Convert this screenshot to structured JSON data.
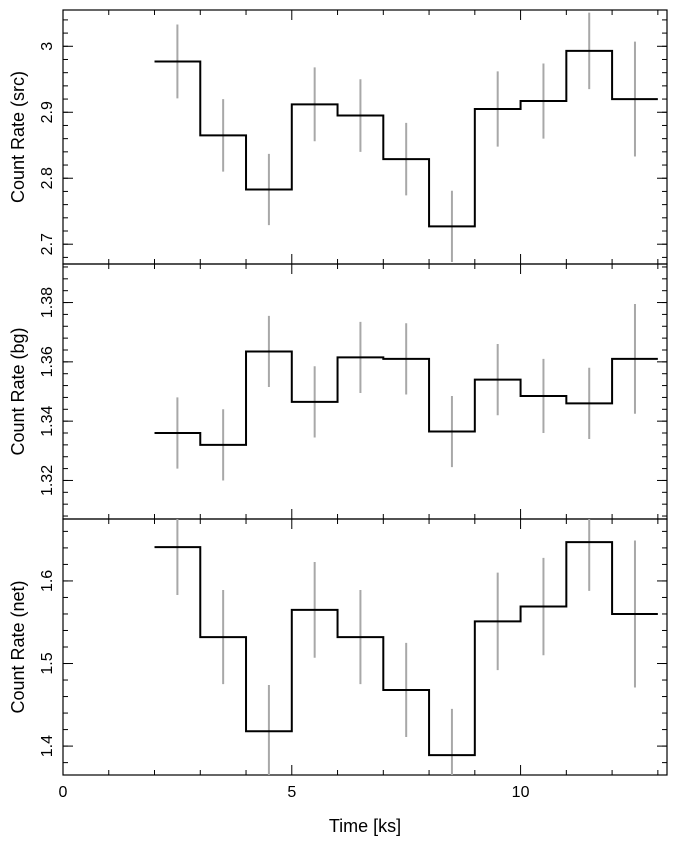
{
  "chart_data": {
    "type": "line",
    "shared_x_axis": {
      "xlabel": "Time [ks]",
      "xlim": [
        0,
        13.2
      ],
      "major_ticks": [
        0,
        5,
        10
      ],
      "tick_labels": [
        "0",
        "5",
        "10"
      ]
    },
    "bin_edges": [
      2,
      3,
      4,
      5,
      6,
      7,
      8,
      9,
      10,
      11,
      12,
      13
    ],
    "bin_centers": [
      2.5,
      3.5,
      4.5,
      5.5,
      6.5,
      7.5,
      8.5,
      9.5,
      10.5,
      11.5,
      12.5
    ],
    "panels": [
      {
        "ylabel": "Count Rate (src)",
        "ylim": [
          2.67,
          3.055
        ],
        "major_ticks": [
          2.7,
          2.8,
          2.9,
          3.0
        ],
        "tick_labels": [
          "2.7",
          "2.8",
          "2.9",
          "3"
        ],
        "minor_step": 0.02,
        "values": [
          2.977,
          2.865,
          2.783,
          2.912,
          2.895,
          2.829,
          2.727,
          2.905,
          2.917,
          2.993,
          2.92
        ],
        "errors": [
          0.056,
          0.055,
          0.054,
          0.056,
          0.055,
          0.055,
          0.054,
          0.057,
          0.057,
          0.058,
          0.087
        ]
      },
      {
        "ylabel": "Count Rate (bg)",
        "ylim": [
          1.307,
          1.393
        ],
        "major_ticks": [
          1.32,
          1.34,
          1.36,
          1.38
        ],
        "tick_labels": [
          "1.32",
          "1.34",
          "1.36",
          "1.38"
        ],
        "minor_step": 0.004,
        "values": [
          1.336,
          1.332,
          1.3635,
          1.3465,
          1.3615,
          1.361,
          1.3365,
          1.354,
          1.3485,
          1.346,
          1.361
        ],
        "errors": [
          0.012,
          0.012,
          0.012,
          0.012,
          0.012,
          0.012,
          0.012,
          0.012,
          0.0125,
          0.012,
          0.0185
        ]
      },
      {
        "ylabel": "Count Rate (net)",
        "ylim": [
          1.365,
          1.675
        ],
        "major_ticks": [
          1.4,
          1.5,
          1.6
        ],
        "tick_labels": [
          "1.4",
          "1.5",
          "1.6"
        ],
        "minor_step": 0.02,
        "values": [
          1.641,
          1.532,
          1.418,
          1.565,
          1.532,
          1.468,
          1.389,
          1.551,
          1.569,
          1.647,
          1.56
        ],
        "errors": [
          0.058,
          0.057,
          0.056,
          0.058,
          0.057,
          0.057,
          0.056,
          0.059,
          0.059,
          0.059,
          0.089
        ]
      }
    ]
  }
}
